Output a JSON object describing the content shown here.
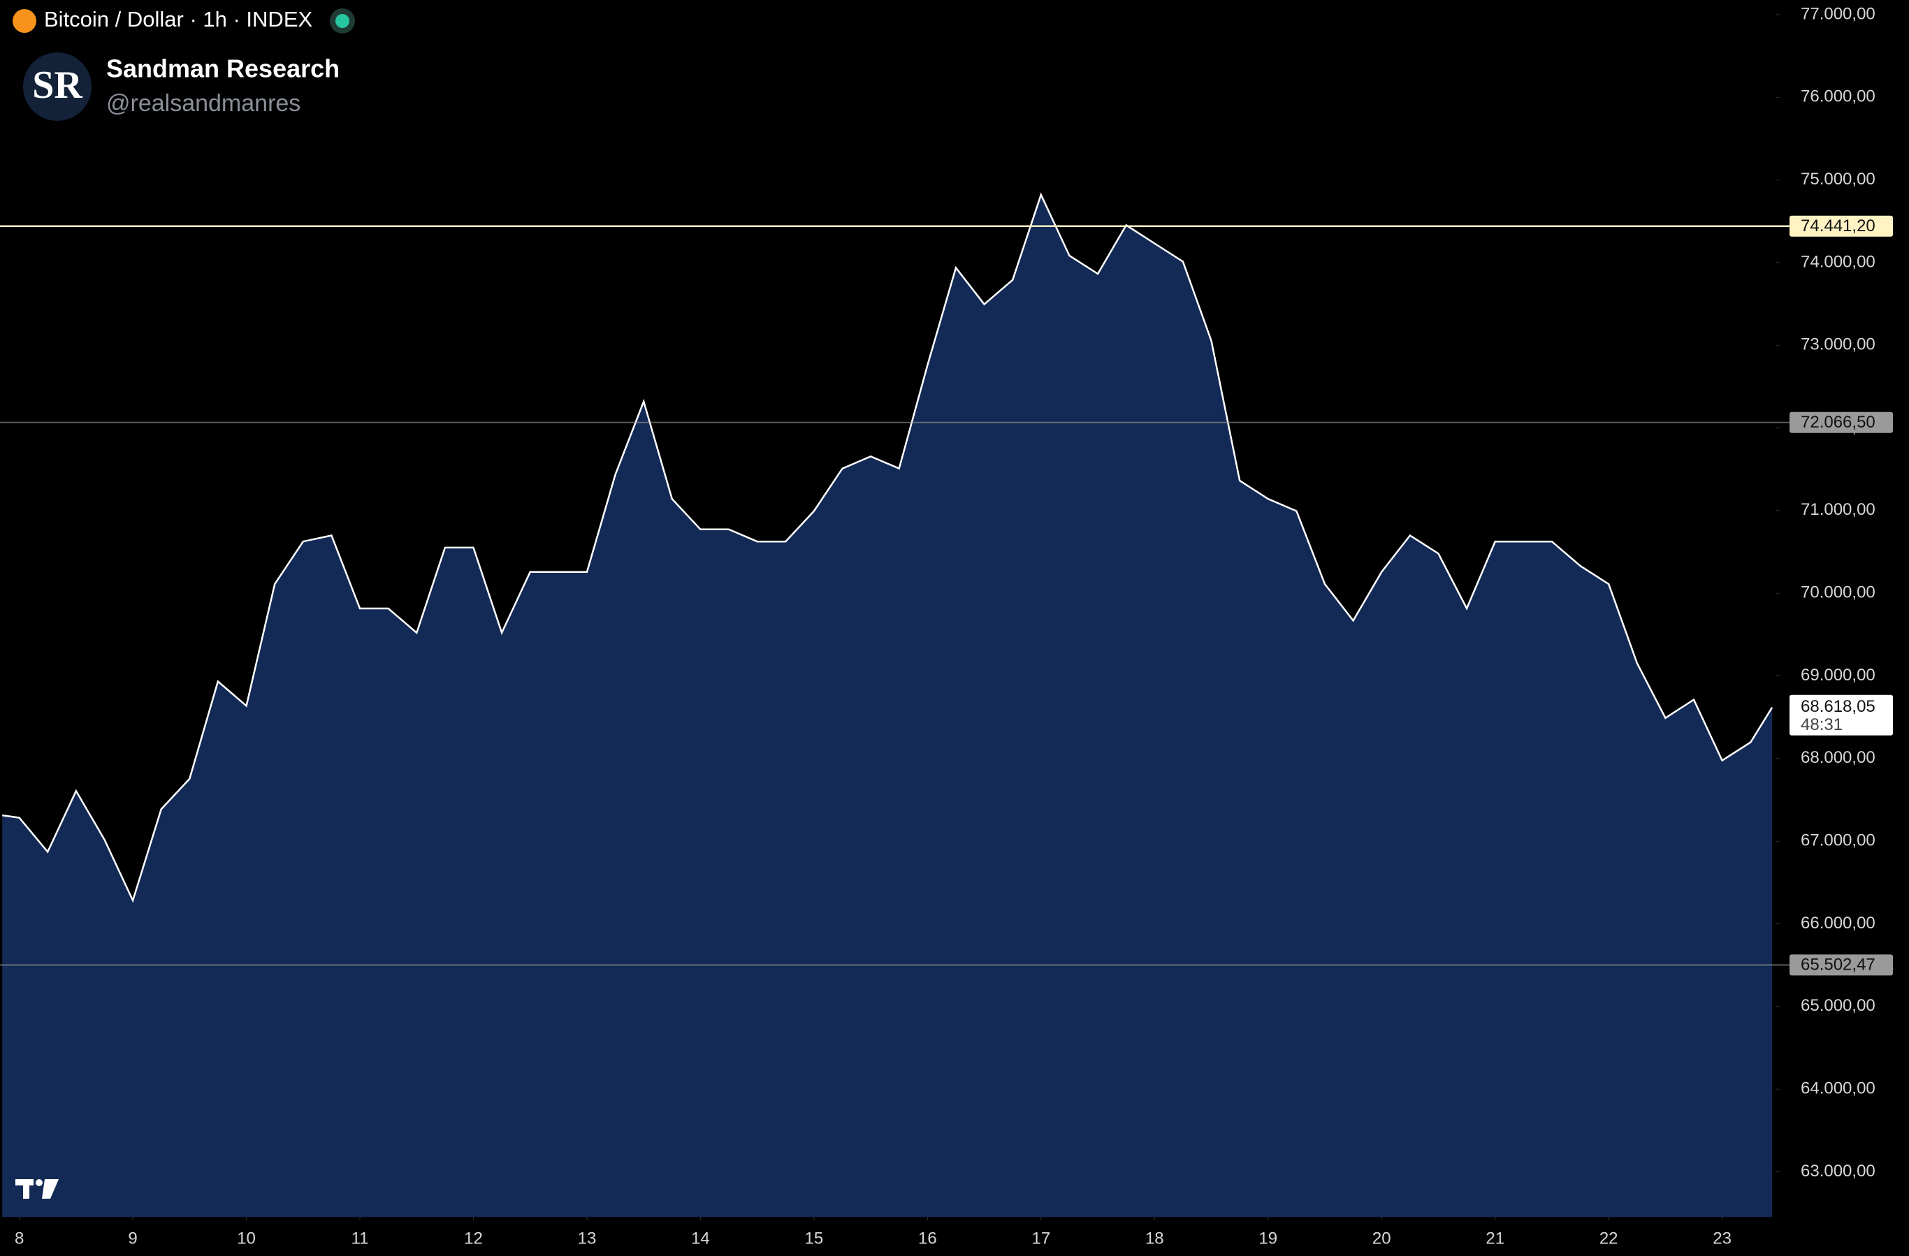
{
  "header": {
    "symbol": "Bitcoin / Dollar · 1h · INDEX",
    "logo": "SR",
    "author": "Sandman Research",
    "handle": "@realsandmanres"
  },
  "chart_data": {
    "type": "area",
    "color": "#142a56",
    "line_color": "#ffffff",
    "x": [
      7.85,
      8,
      8.25,
      8.5,
      8.75,
      9,
      9.25,
      9.5,
      9.75,
      10,
      10.25,
      10.5,
      10.75,
      11,
      11.25,
      11.5,
      11.75,
      12,
      12.25,
      12.5,
      12.75,
      13,
      13.25,
      13.5,
      13.75,
      14,
      14.25,
      14.5,
      14.75,
      15,
      15.25,
      15.5,
      15.75,
      16,
      16.25,
      16.5,
      16.75,
      17,
      17.25,
      17.5,
      17.75,
      18,
      18.25,
      18.5,
      18.75,
      19,
      19.25,
      19.5,
      19.75,
      20,
      20.25,
      20.5,
      20.75,
      21,
      21.25,
      21.5,
      21.75,
      22,
      22.25,
      22.5,
      22.75,
      23,
      23.25,
      23.44
    ],
    "values": [
      67314,
      67284,
      66872,
      67608,
      67019,
      66283,
      67387,
      67755,
      68933,
      68638,
      70111,
      70626,
      70699,
      69816,
      69816,
      69522,
      70552,
      70552,
      69522,
      70258,
      70258,
      70258,
      71435,
      72319,
      71141,
      70773,
      70773,
      70626,
      70626,
      70994,
      71509,
      71656,
      71509,
      72760,
      73938,
      73496,
      73791,
      74821,
      74085,
      73864,
      74453,
      74232,
      74012,
      73055,
      71362,
      71141,
      70994,
      70111,
      69669,
      70258,
      70699,
      70479,
      69816,
      70626,
      70626,
      70626,
      70331,
      70111,
      69154,
      68491,
      68712,
      67976,
      68197,
      68618.05
    ],
    "xlim": [
      7.83,
      23.47
    ],
    "ylim": [
      62455,
      77177
    ],
    "xticks": [
      8,
      9,
      10,
      11,
      12,
      13,
      14,
      15,
      16,
      17,
      18,
      19,
      20,
      21,
      22,
      23
    ],
    "yticks": [
      {
        "value": 63000,
        "label": "63.000,00"
      },
      {
        "value": 64000,
        "label": "64.000,00"
      },
      {
        "value": 65000,
        "label": "65.000,00"
      },
      {
        "value": 66000,
        "label": "66.000,00"
      },
      {
        "value": 67000,
        "label": "67.000,00"
      },
      {
        "value": 68000,
        "label": "68.000,00"
      },
      {
        "value": 69000,
        "label": "69.000,00"
      },
      {
        "value": 70000,
        "label": "70.000,00"
      },
      {
        "value": 71000,
        "label": "71.000,00"
      },
      {
        "value": 72000,
        "label": "72.000,00"
      },
      {
        "value": 73000,
        "label": "73.000,00"
      },
      {
        "value": 74000,
        "label": "74.000,00"
      },
      {
        "value": 75000,
        "label": "75.000,00"
      },
      {
        "value": 76000,
        "label": "76.000,00"
      },
      {
        "value": 77000,
        "label": "77.000,00"
      }
    ],
    "hlines": [
      {
        "value": 74441.2,
        "label": "74.441,20",
        "color": "#fff3c4"
      },
      {
        "value": 72066.5,
        "label": "72.066,50",
        "color": "#9a9a9a"
      },
      {
        "value": 65502.47,
        "label": "65.502,47",
        "color": "#9a9a9a"
      }
    ],
    "last_price": {
      "value": 68618.05,
      "label": "68.618,05",
      "countdown": "48:31"
    }
  }
}
